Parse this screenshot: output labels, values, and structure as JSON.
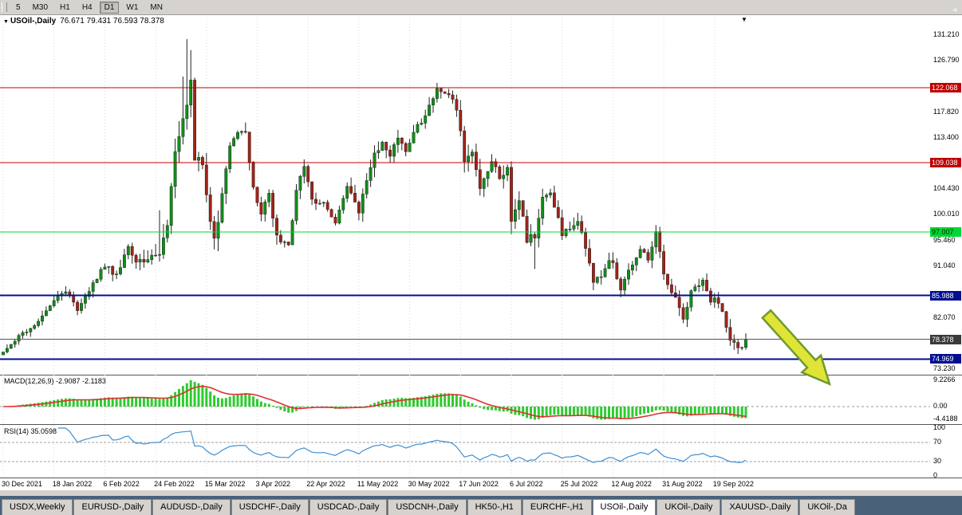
{
  "toolbar": {
    "periods": [
      {
        "label": "5",
        "active": false
      },
      {
        "label": "M30",
        "active": false
      },
      {
        "label": "H1",
        "active": false
      },
      {
        "label": "H4",
        "active": false
      },
      {
        "label": "D1",
        "active": true
      },
      {
        "label": "W1",
        "active": false
      },
      {
        "label": "MN",
        "active": false
      }
    ]
  },
  "chart": {
    "title": "USOil-,Daily",
    "ohlc": "76.671 79.431 76.593 78.378",
    "title_marker": "▼",
    "shift_marker": "▼"
  },
  "y_axis": {
    "ticks": [
      "131.210",
      "126.790",
      "117.820",
      "113.400",
      "104.430",
      "100.010",
      "95.460",
      "91.040",
      "82.070",
      "73.230"
    ]
  },
  "hlines": [
    {
      "value": 122.068,
      "label": "122.068",
      "line_color": "#c00000",
      "label_bg": "#c00000",
      "label_fg": "#ffffff",
      "width": 1
    },
    {
      "value": 109.038,
      "label": "109.038",
      "line_color": "#c00000",
      "label_bg": "#c00000",
      "label_fg": "#ffffff",
      "width": 1
    },
    {
      "value": 97.007,
      "label": "97.007",
      "line_color": "#00d733",
      "label_bg": "#00d733",
      "label_fg": "#002b00",
      "width": 1
    },
    {
      "value": 85.988,
      "label": "85.988",
      "line_color": "#000f8f",
      "label_bg": "#000f8f",
      "label_fg": "#ffffff",
      "width": 2
    },
    {
      "value": 78.378,
      "label": "78.378",
      "line_color": "#555555",
      "label_bg": "#3a3a3a",
      "label_fg": "#ffffff",
      "width": 1
    },
    {
      "value": 74.969,
      "label": "74.969",
      "line_color": "#000f8f",
      "label_bg": "#000f8f",
      "label_fg": "#ffffff",
      "width": 2
    }
  ],
  "x_axis": {
    "step": 13,
    "labels": [
      "30 Dec 2021",
      "18 Jan 2022",
      "6 Feb 2022",
      "24 Feb 2022",
      "15 Mar 2022",
      "3 Apr 2022",
      "22 Apr 2022",
      "11 May 2022",
      "30 May 2022",
      "17 Jun 2022",
      "6 Jul 2022",
      "25 Jul 2022",
      "12 Aug 2022",
      "31 Aug 2022",
      "19 Sep 2022"
    ]
  },
  "macd_panel": {
    "label": "MACD(12,26,9) -2.9087 -2.1183",
    "params": [
      12,
      26,
      9
    ],
    "values": [
      -2.9087,
      -2.1183
    ],
    "axis": [
      {
        "label": "9.2266",
        "value": 9.2266
      },
      {
        "label": "0.00",
        "value": 0
      },
      {
        "label": "-4.4188",
        "value": -4.4188
      }
    ]
  },
  "rsi_panel": {
    "label": "RSI(14) 35.0598",
    "period": 14,
    "value": 35.0598,
    "levels": [
      70,
      30
    ],
    "axis": [
      {
        "label": "100",
        "value": 100
      },
      {
        "label": "70",
        "value": 70
      },
      {
        "label": "30",
        "value": 30
      },
      {
        "label": "0",
        "value": 0
      }
    ]
  },
  "tabs": {
    "scroll_icon": "◄",
    "items": [
      {
        "label": "USDX,Weekly",
        "active": false
      },
      {
        "label": "EURUSD-,Daily",
        "active": false
      },
      {
        "label": "AUDUSD-,Daily",
        "active": false
      },
      {
        "label": "USDCHF-,Daily",
        "active": false
      },
      {
        "label": "USDCAD-,Daily",
        "active": false
      },
      {
        "label": "USDCNH-,Daily",
        "active": false
      },
      {
        "label": "HK50-,H1",
        "active": false
      },
      {
        "label": "EURCHF-,H1",
        "active": false
      },
      {
        "label": "USOil-,Daily",
        "active": true
      },
      {
        "label": "UKOil-,Daily",
        "active": false
      },
      {
        "label": "XAUUSD-,Daily",
        "active": false
      },
      {
        "label": "UKOil-,Da",
        "active": false
      }
    ]
  },
  "colors": {
    "bull": "#0e8f18",
    "bear": "#a0241a",
    "wick": "#222222",
    "grid": "#d9d9d9",
    "macd_hist": "#2ecc2e",
    "macd_signal": "#e03030",
    "rsi_line": "#3f8fd2",
    "arrow_fill": "#dfe437",
    "arrow_stroke": "#6f9a2f",
    "tabbar_bg": "#4a617a"
  },
  "chart_data": {
    "type": "candlestick",
    "symbol": "USOil-,Daily",
    "timeframe": "Daily",
    "last_quote": {
      "open": 76.671,
      "high": 79.431,
      "low": 76.593,
      "close": 78.378
    },
    "visible_price_range": [
      72.3,
      134.8
    ],
    "first_date": "30 Dec 2021",
    "last_date_label": "19 Sep 2022",
    "candles_count": 191,
    "close_anchors": [
      [
        0,
        76.2,
        0.9
      ],
      [
        4,
        79.0,
        1.0
      ],
      [
        9,
        81.3,
        1.1
      ],
      [
        13,
        85.4,
        1.2
      ],
      [
        16,
        86.8,
        1.3
      ],
      [
        19,
        83.5,
        1.4
      ],
      [
        23,
        88.0,
        1.4
      ],
      [
        26,
        91.3,
        1.5
      ],
      [
        29,
        89.4,
        1.7
      ],
      [
        32,
        94.6,
        1.8
      ],
      [
        34,
        91.5,
        2.0
      ],
      [
        37,
        92.3,
        2.2
      ],
      [
        40,
        92.8,
        3.6
      ],
      [
        42,
        98.0,
        2.8
      ],
      [
        44,
        110.6,
        4.0
      ],
      [
        46,
        115.7,
        4.5
      ],
      [
        47,
        119.4,
        5.0
      ],
      [
        48,
        123.7,
        5.0
      ],
      [
        49,
        108.7,
        4.5
      ],
      [
        51,
        109.3,
        3.5
      ],
      [
        52,
        103.0,
        3.2
      ],
      [
        54,
        95.5,
        3.0
      ],
      [
        56,
        103.0,
        2.8
      ],
      [
        58,
        112.1,
        2.6
      ],
      [
        60,
        114.9,
        2.6
      ],
      [
        62,
        113.9,
        2.4
      ],
      [
        64,
        104.2,
        2.4
      ],
      [
        66,
        100.3,
        2.2
      ],
      [
        68,
        103.3,
        2.2
      ],
      [
        70,
        96.2,
        2.2
      ],
      [
        73,
        94.3,
        2.0
      ],
      [
        75,
        104.3,
        2.2
      ],
      [
        77,
        108.2,
        2.2
      ],
      [
        79,
        102.6,
        2.0
      ],
      [
        82,
        102.1,
        1.9
      ],
      [
        85,
        98.5,
        1.9
      ],
      [
        88,
        105.4,
        1.9
      ],
      [
        91,
        100.1,
        2.4
      ],
      [
        93,
        106.1,
        2.2
      ],
      [
        95,
        110.5,
        2.2
      ],
      [
        97,
        112.4,
        2.0
      ],
      [
        99,
        110.3,
        2.0
      ],
      [
        101,
        113.2,
        1.9
      ],
      [
        103,
        110.9,
        1.9
      ],
      [
        105,
        114.7,
        1.8
      ],
      [
        108,
        116.9,
        1.8
      ],
      [
        111,
        122.1,
        1.9
      ],
      [
        114,
        120.9,
        2.0
      ],
      [
        116,
        118.6,
        2.2
      ],
      [
        118,
        109.6,
        2.6
      ],
      [
        120,
        110.6,
        2.4
      ],
      [
        122,
        104.3,
        2.4
      ],
      [
        125,
        109.8,
        2.2
      ],
      [
        127,
        105.8,
        2.2
      ],
      [
        129,
        108.4,
        2.4
      ],
      [
        130,
        99.5,
        3.0
      ],
      [
        132,
        102.7,
        2.6
      ],
      [
        134,
        95.8,
        2.6
      ],
      [
        136,
        96.3,
        2.8
      ],
      [
        138,
        102.6,
        2.2
      ],
      [
        140,
        104.2,
        2.0
      ],
      [
        143,
        96.7,
        2.0
      ],
      [
        145,
        97.3,
        2.2
      ],
      [
        147,
        98.6,
        2.0
      ],
      [
        149,
        94.4,
        2.2
      ],
      [
        151,
        88.5,
        2.2
      ],
      [
        153,
        89.0,
        2.0
      ],
      [
        155,
        91.9,
        1.9
      ],
      [
        156,
        92.1,
        1.9
      ],
      [
        158,
        86.5,
        1.9
      ],
      [
        160,
        90.5,
        1.6
      ],
      [
        163,
        93.7,
        1.6
      ],
      [
        165,
        92.5,
        1.6
      ],
      [
        167,
        97.0,
        1.9
      ],
      [
        169,
        89.6,
        2.2
      ],
      [
        171,
        86.9,
        1.8
      ],
      [
        174,
        81.9,
        1.9
      ],
      [
        176,
        86.8,
        1.6
      ],
      [
        179,
        88.5,
        1.5
      ],
      [
        181,
        85.1,
        1.5
      ],
      [
        182,
        85.7,
        1.4
      ],
      [
        184,
        82.9,
        1.6
      ],
      [
        186,
        78.7,
        2.0
      ],
      [
        188,
        76.7,
        1.5
      ],
      [
        189,
        76.9,
        1.4
      ],
      [
        190,
        78.378,
        1.3
      ]
    ],
    "high_overrides": [
      [
        40,
        100.8
      ],
      [
        46,
        124.0
      ],
      [
        47,
        130.5
      ],
      [
        48,
        128.6
      ],
      [
        190,
        79.431
      ]
    ],
    "low_overrides": [
      [
        54,
        94.0
      ],
      [
        136,
        90.6
      ],
      [
        158,
        85.7
      ],
      [
        174,
        81.2
      ],
      [
        190,
        76.593
      ]
    ],
    "support_resistance_lines": [
      122.068,
      109.038,
      97.007,
      85.988,
      74.969
    ],
    "current_price": 78.378
  }
}
